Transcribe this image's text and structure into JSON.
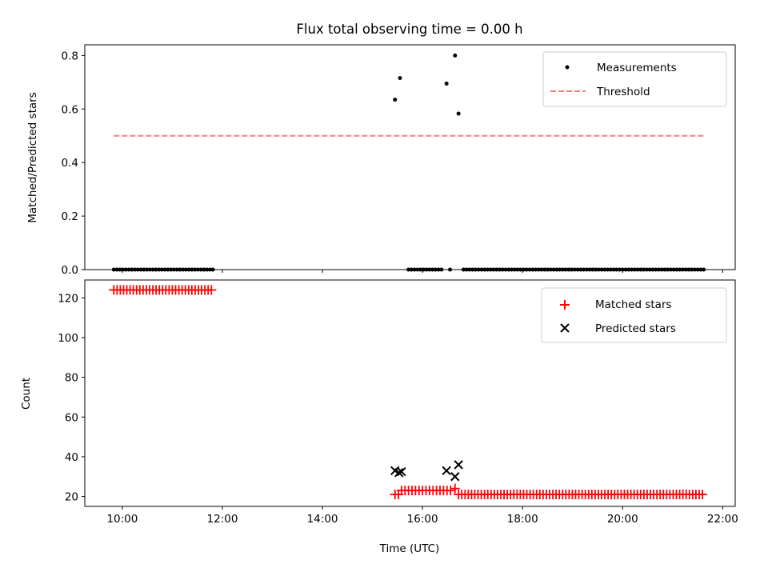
{
  "chart_data": {
    "title": "Flux total observing time = 0.00 h",
    "xlabel": "Time (UTC)",
    "xlim_hours": [
      9.25,
      22.25
    ],
    "x_ticks": [
      {
        "value": 10,
        "label": "10:00"
      },
      {
        "value": 12,
        "label": "12:00"
      },
      {
        "value": 14,
        "label": "14:00"
      },
      {
        "value": 16,
        "label": "16:00"
      },
      {
        "value": 18,
        "label": "18:00"
      },
      {
        "value": 20,
        "label": "20:00"
      },
      {
        "value": 22,
        "label": "22:00"
      }
    ],
    "panels": [
      {
        "type": "scatter",
        "ylabel": "Matched/Predicted stars",
        "ylim": [
          0,
          0.84
        ],
        "y_ticks": [
          {
            "value": 0.0,
            "label": "0.0"
          },
          {
            "value": 0.2,
            "label": "0.2"
          },
          {
            "value": 0.4,
            "label": "0.4"
          },
          {
            "value": 0.6,
            "label": "0.6"
          },
          {
            "value": 0.8,
            "label": "0.8"
          }
        ],
        "legend_position": "top-right",
        "series": [
          {
            "name": "Measurements",
            "marker": "dot",
            "color": "#000000",
            "segments": [
              {
                "start": 9.83,
                "end": 11.83,
                "step": 0.06,
                "y": 0
              },
              {
                "start": 15.72,
                "end": 16.42,
                "step": 0.06,
                "y": 0
              },
              {
                "start": 16.82,
                "end": 21.62,
                "step": 0.06,
                "y": 0
              }
            ],
            "points": [
              {
                "x": 15.45,
                "y": 0.635
              },
              {
                "x": 15.55,
                "y": 0.716
              },
              {
                "x": 16.48,
                "y": 0.695
              },
              {
                "x": 16.65,
                "y": 0.8
              },
              {
                "x": 16.72,
                "y": 0.583
              },
              {
                "x": 16.55,
                "y": 0
              }
            ]
          },
          {
            "name": "Threshold",
            "marker": "dashed-line",
            "color": "#ff7f7f",
            "x_range": [
              9.83,
              21.62
            ],
            "y": 0.5
          }
        ]
      },
      {
        "type": "scatter",
        "ylabel": "Count",
        "ylim": [
          15,
          129
        ],
        "y_ticks": [
          {
            "value": 20,
            "label": "20"
          },
          {
            "value": 40,
            "label": "40"
          },
          {
            "value": 60,
            "label": "60"
          },
          {
            "value": 80,
            "label": "80"
          },
          {
            "value": 100,
            "label": "100"
          },
          {
            "value": 120,
            "label": "120"
          }
        ],
        "legend_position": "top-right",
        "series": [
          {
            "name": "Matched stars",
            "marker": "plus",
            "color": "#ff0000",
            "segments": [
              {
                "start": 9.83,
                "end": 11.83,
                "step": 0.065,
                "y": 124
              },
              {
                "start": 15.45,
                "end": 15.52,
                "step": 0.07,
                "y": 21
              },
              {
                "start": 15.58,
                "end": 16.6,
                "step": 0.07,
                "y": 23
              },
              {
                "start": 16.65,
                "end": 16.65,
                "step": 0.07,
                "y": 24
              },
              {
                "start": 16.72,
                "end": 21.62,
                "step": 0.065,
                "y": 21
              }
            ]
          },
          {
            "name": "Predicted stars",
            "marker": "x",
            "color": "#000000",
            "points": [
              {
                "x": 15.45,
                "y": 33
              },
              {
                "x": 15.53,
                "y": 32
              },
              {
                "x": 15.58,
                "y": 32.5
              },
              {
                "x": 16.48,
                "y": 33
              },
              {
                "x": 16.65,
                "y": 30
              },
              {
                "x": 16.72,
                "y": 36
              }
            ]
          }
        ]
      }
    ]
  }
}
